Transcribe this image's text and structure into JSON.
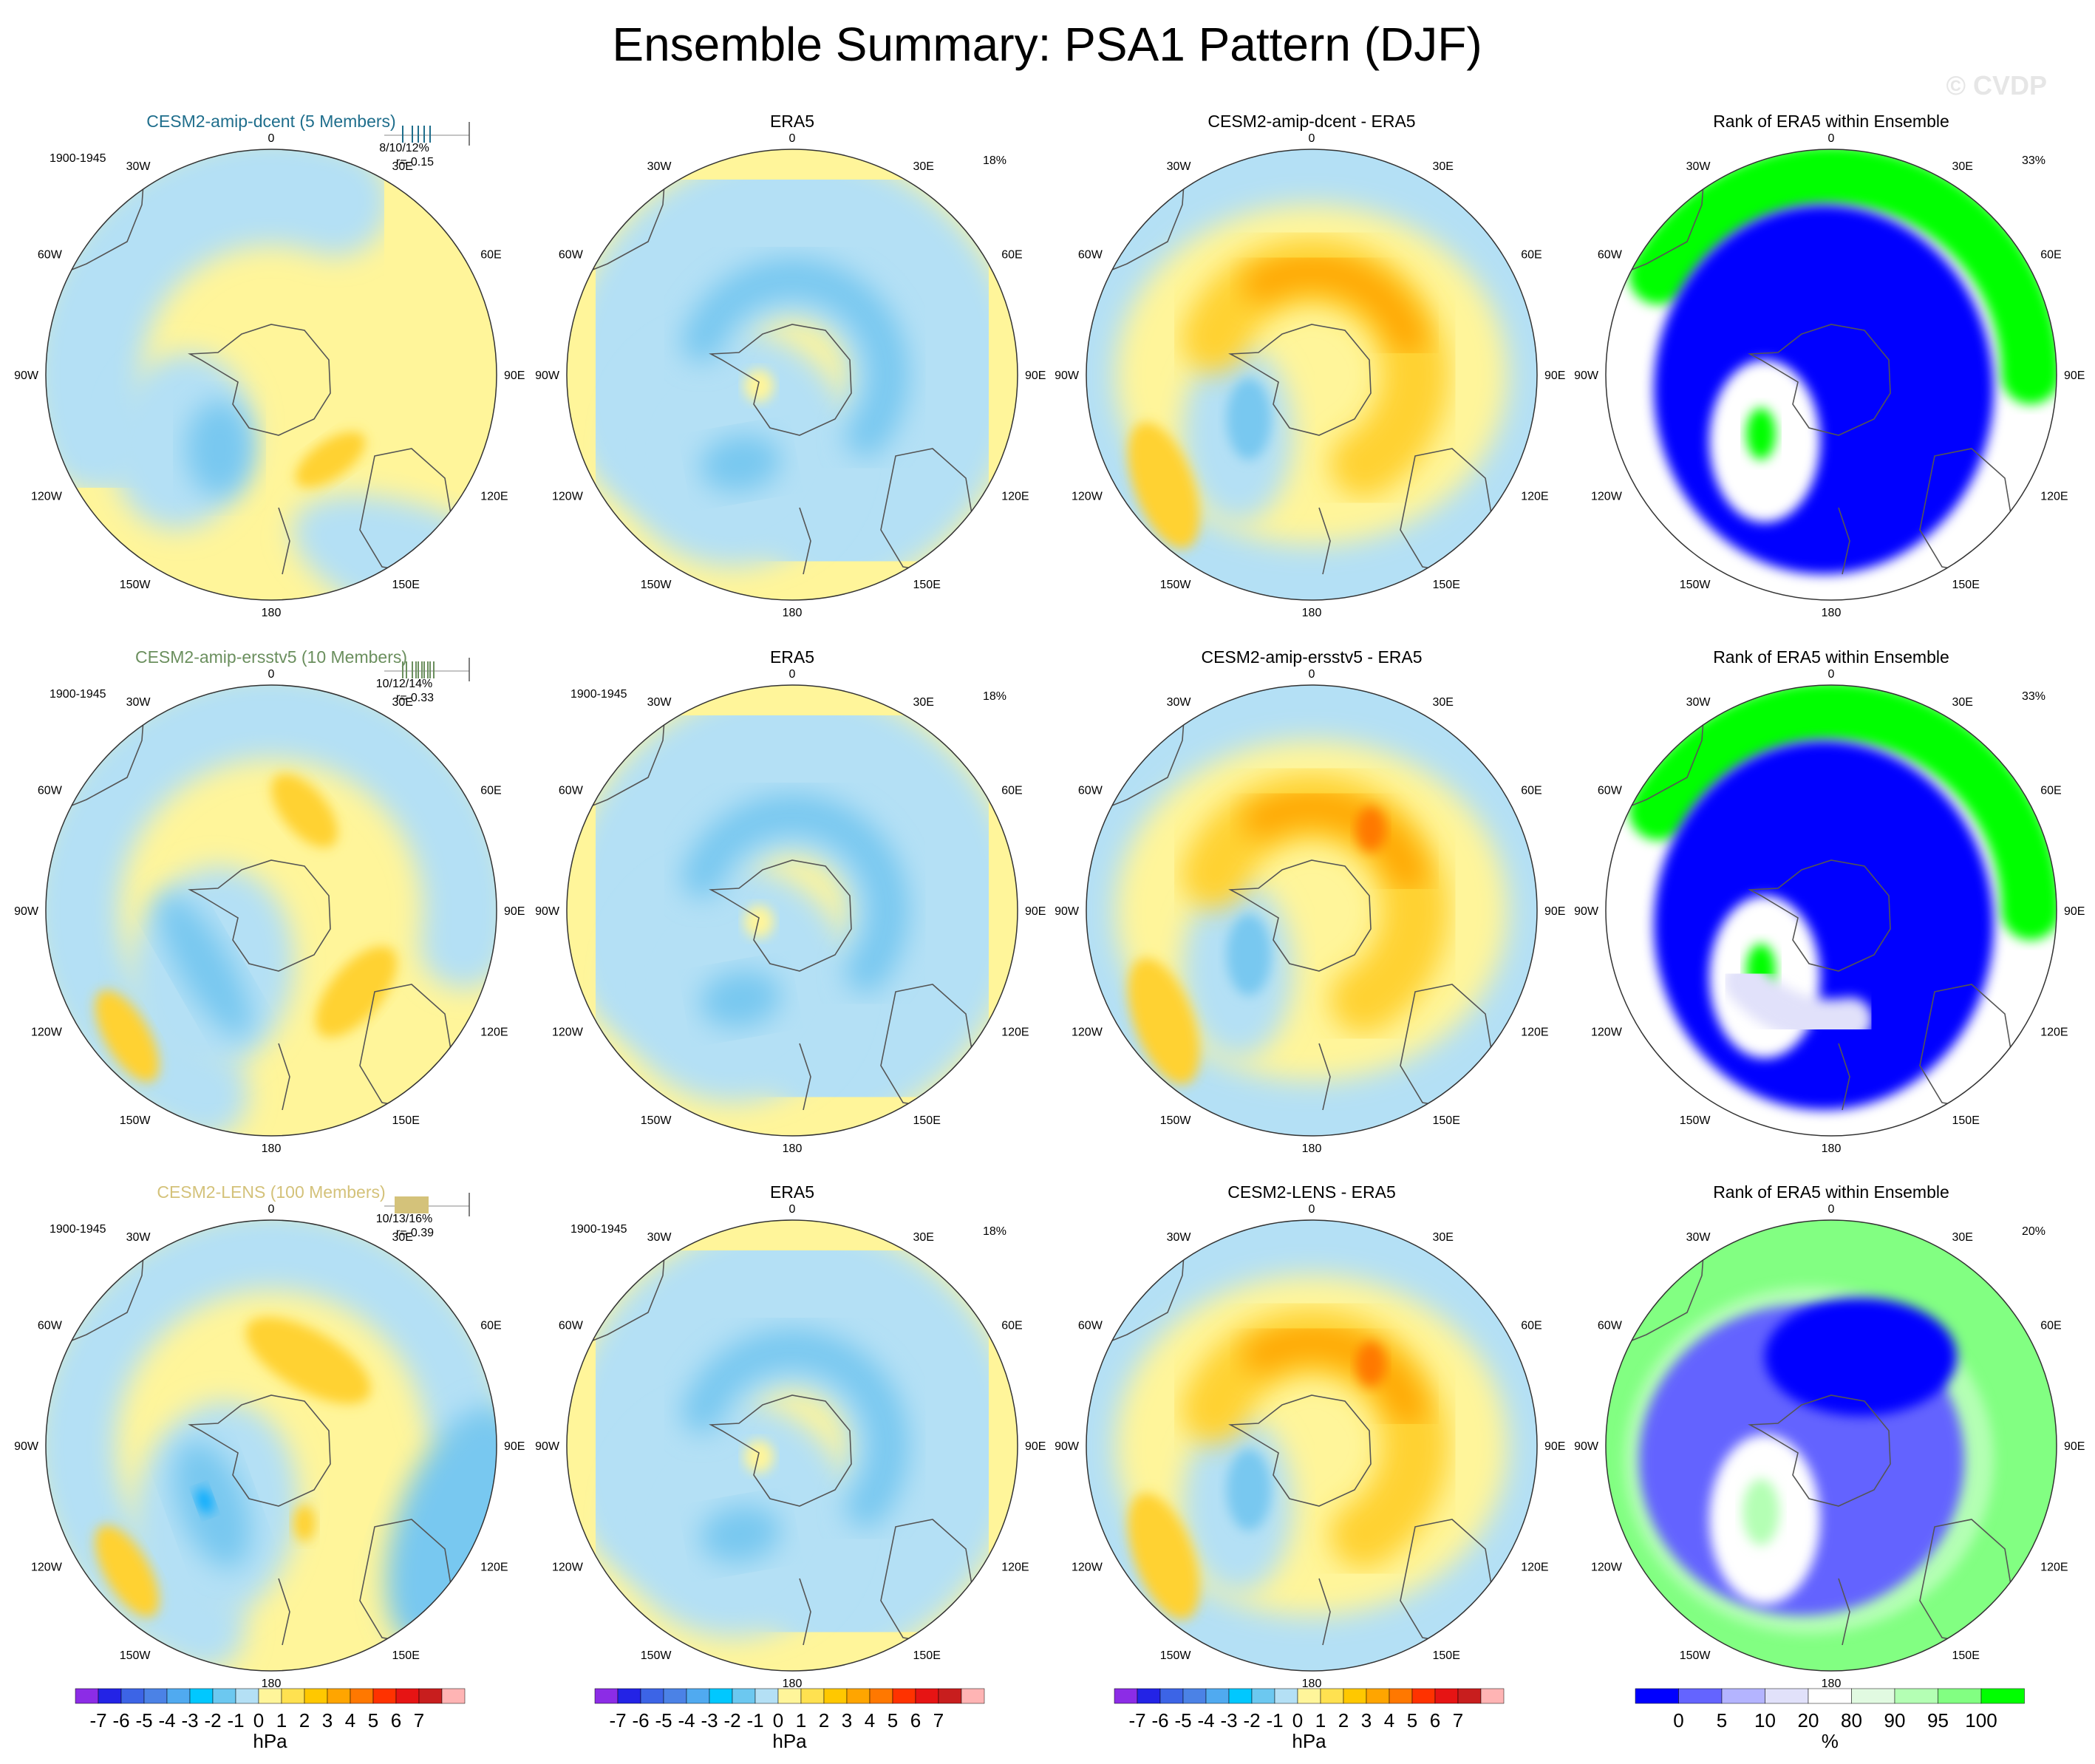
{
  "figure_title": "Ensemble Summary: PSA1 Pattern (DJF)",
  "watermark": "© CVDP",
  "rows": [
    {
      "model": {
        "title": "CESM2-amip-dcent (5 Members)",
        "title_color": "#1f6e8c",
        "period": "1900-1945",
        "stats_line1": "8/10/12%",
        "stats_line2": "r=-0.15",
        "variant": 0
      },
      "obs": {
        "title": "ERA5",
        "pct": "18%",
        "period": ""
      },
      "diff": {
        "title": "CESM2-amip-dcent - ERA5"
      },
      "rank": {
        "title": "Rank of ERA5 within Ensemble",
        "pct": "33%"
      }
    },
    {
      "model": {
        "title": "CESM2-amip-ersstv5 (10 Members)",
        "title_color": "#6b8f5e",
        "period": "1900-1945",
        "stats_line1": "10/12/14%",
        "stats_line2": "r=-0.33",
        "variant": 1
      },
      "obs": {
        "title": "ERA5",
        "pct": "18%",
        "period": "1900-1945"
      },
      "diff": {
        "title": "CESM2-amip-ersstv5 - ERA5"
      },
      "rank": {
        "title": "Rank of ERA5 within Ensemble",
        "pct": "33%"
      }
    },
    {
      "model": {
        "title": "CESM2-LENS (100 Members)",
        "title_color": "#d4c27a",
        "period": "1900-1945",
        "stats_line1": "10/13/16%",
        "stats_line2": "r=-0.39",
        "variant": 2
      },
      "obs": {
        "title": "ERA5",
        "pct": "18%",
        "period": "1900-1945"
      },
      "diff": {
        "title": "CESM2-LENS - ERA5"
      },
      "rank": {
        "title": "Rank of ERA5 within Ensemble",
        "pct": "20%"
      }
    }
  ],
  "lon_labels": [
    "0",
    "30E",
    "60E",
    "90E",
    "120E",
    "150E",
    "180",
    "150W",
    "120W",
    "90W",
    "60W",
    "30W"
  ],
  "colorbar_hpa": {
    "colors": [
      "#8c2ce6",
      "#2323e6",
      "#3c64e6",
      "#4b82e6",
      "#50aaf0",
      "#00c8ff",
      "#6cc8f0",
      "#b4e0f5",
      "#fff59a",
      "#ffe150",
      "#ffc800",
      "#ffa500",
      "#ff7800",
      "#ff3200",
      "#e61414",
      "#c81e1e",
      "#ffb4b4"
    ],
    "labels": [
      "-7",
      "-6",
      "-5",
      "-4",
      "-3",
      "-2",
      "-1",
      "0",
      "1",
      "2",
      "3",
      "4",
      "5",
      "6",
      "7"
    ],
    "unit": "hPa"
  },
  "colorbar_pct": {
    "colors": [
      "#0000ff",
      "#6464ff",
      "#b4b4ff",
      "#e1e1fa",
      "#ffffff",
      "#e1fae1",
      "#b4ffb4",
      "#82ff82",
      "#00ff00"
    ],
    "labels": [
      "0",
      "5",
      "10",
      "20",
      "80",
      "90",
      "95",
      "100"
    ],
    "unit": "%"
  },
  "palette": {
    "neg_light": "#b4e0f5",
    "neg_mid": "#78c8f0",
    "neg_strong": "#00aaff",
    "pos_light": "#fff59a",
    "pos_mid": "#ffd232",
    "pos_strong": "#ffa500",
    "pos_max": "#ff7800",
    "rank_low": "#0000ff",
    "rank_lowmid": "#6464ff",
    "rank_mid": "#e1e1fa",
    "rank_white": "#ffffff",
    "rank_hi": "#b4ffb4",
    "rank_higher": "#82ff82",
    "rank_max": "#00ff00"
  }
}
